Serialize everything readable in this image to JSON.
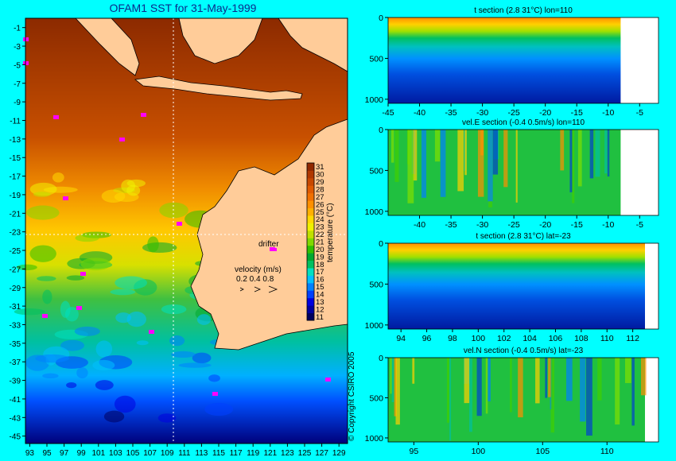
{
  "colors": {
    "background": "#00ffff",
    "land": "#ffcc99",
    "nodata": "#ffffff",
    "drifter": "#ff00ff",
    "palette": [
      "#00005e",
      "#0000a0",
      "#0000e0",
      "#0040ff",
      "#0080ff",
      "#00c0ff",
      "#00e0c0",
      "#00c060",
      "#00a830",
      "#30c000",
      "#80d800",
      "#c0e000",
      "#f0f000",
      "#ffd800",
      "#ffb000",
      "#ff9000",
      "#f07000",
      "#e05a00",
      "#c84800",
      "#b03800",
      "#902800"
    ]
  },
  "map": {
    "title": "OFAM1 SST for 31-May-1999",
    "x_ticks": [
      "93",
      "95",
      "97",
      "99",
      "101",
      "103",
      "105",
      "107",
      "109",
      "111",
      "113",
      "115",
      "117",
      "119",
      "121",
      "123",
      "125",
      "127",
      "129"
    ],
    "y_ticks": [
      "-1",
      "-3",
      "-5",
      "-7",
      "-9",
      "-11",
      "-13",
      "-15",
      "-17",
      "-19",
      "-21",
      "-23",
      "-25",
      "-27",
      "-29",
      "-31",
      "-33",
      "-35",
      "-37",
      "-39",
      "-41",
      "-43",
      "-45"
    ],
    "colorbar": {
      "label": "temperature (°C)",
      "ticks": [
        "11",
        "12",
        "13",
        "14",
        "15",
        "16",
        "17",
        "18",
        "19",
        "20",
        "21",
        "22",
        "23",
        "24",
        "25",
        "26",
        "27",
        "28",
        "29",
        "30",
        "31"
      ]
    },
    "drifter_label": "drifter",
    "velocity_label": "velocity (m/s)",
    "velocity_scale": "0.2 0.4 0.8",
    "section_lines": {
      "lon": 110,
      "lat": -23
    },
    "copyright": "© Copyright CSIRO 2005"
  },
  "chart_data": [
    {
      "type": "heatmap",
      "title": "t section (2.8      31°C) lon=110",
      "x_ticks": [
        "-45",
        "-40",
        "-35",
        "-30",
        "-25",
        "-20",
        "-15",
        "-10",
        "-5"
      ],
      "y_ticks": [
        "0",
        "500",
        "1000"
      ],
      "xlim": [
        -45,
        -2
      ],
      "ylim": [
        1050,
        0
      ],
      "value_range": [
        2.8,
        31
      ]
    },
    {
      "type": "heatmap",
      "title": "vel.E section (-0.4      0.5m/s) lon=110",
      "x_ticks": [
        "-40",
        "-35",
        "-30",
        "-25",
        "-20",
        "-15",
        "-10",
        "-5"
      ],
      "y_ticks": [
        "0",
        "500",
        "1000"
      ],
      "xlim": [
        -45,
        -2
      ],
      "ylim": [
        1050,
        0
      ],
      "value_range": [
        -0.4,
        0.5
      ]
    },
    {
      "type": "heatmap",
      "title": "t section (2.8      31°C) lat=-23",
      "x_ticks": [
        "94",
        "96",
        "98",
        "100",
        "102",
        "104",
        "106",
        "108",
        "110",
        "112"
      ],
      "y_ticks": [
        "0",
        "500",
        "1000"
      ],
      "xlim": [
        93,
        114
      ],
      "ylim": [
        1050,
        0
      ],
      "value_range": [
        2.8,
        31
      ]
    },
    {
      "type": "heatmap",
      "title": "vel.N section (-0.4      0.5m/s) lat=-23",
      "x_ticks": [
        "95",
        "100",
        "105",
        "110"
      ],
      "y_ticks": [
        "0",
        "500",
        "1000"
      ],
      "xlim": [
        93,
        114
      ],
      "ylim": [
        1050,
        0
      ],
      "value_range": [
        -0.4,
        0.5
      ]
    }
  ]
}
